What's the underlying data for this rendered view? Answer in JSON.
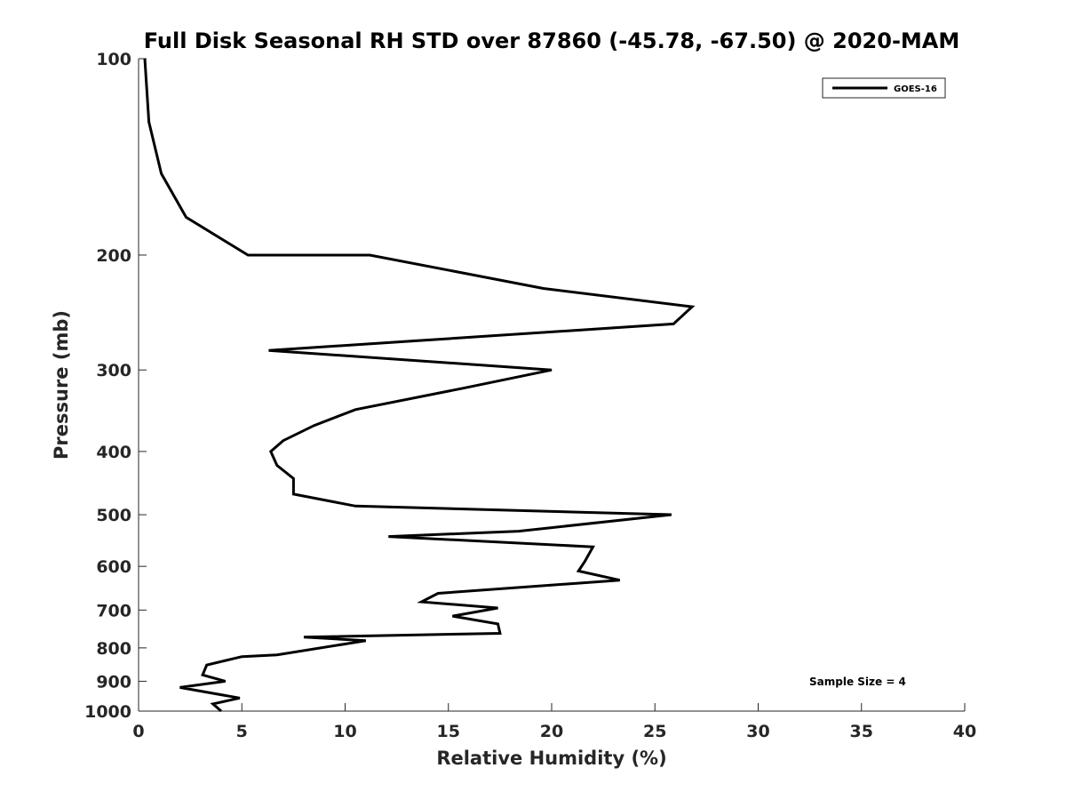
{
  "chart_data": {
    "type": "line",
    "title": "Full Disk Seasonal RH STD over 87860 (-45.78, -67.50) @ 2020-MAM",
    "xlabel": "Relative Humidity (%)",
    "ylabel": "Pressure (mb)",
    "xlim": [
      0,
      40
    ],
    "ylim": [
      100,
      1000
    ],
    "yscale": "log",
    "y_reversed": true,
    "grid": false,
    "legend_position": "top-right",
    "x_ticks": [
      0,
      5,
      10,
      15,
      20,
      25,
      30,
      35,
      40
    ],
    "x_tick_labels": [
      "0",
      "5",
      "10",
      "15",
      "20",
      "25",
      "30",
      "35",
      "40"
    ],
    "y_ticks": [
      100,
      200,
      300,
      400,
      500,
      600,
      700,
      800,
      900,
      1000
    ],
    "y_tick_labels": [
      "100",
      "200",
      "300",
      "400",
      "500",
      "600",
      "700",
      "800",
      "900",
      "1000"
    ],
    "annotation": "Sample Size = 4",
    "series": [
      {
        "name": "GOES-16",
        "color": "#000000",
        "points": [
          [
            0.3,
            100
          ],
          [
            0.5,
            125
          ],
          [
            1.1,
            150
          ],
          [
            2.3,
            175
          ],
          [
            5.3,
            200
          ],
          [
            11.2,
            200
          ],
          [
            19.6,
            225
          ],
          [
            26.8,
            240
          ],
          [
            25.9,
            255
          ],
          [
            6.3,
            280
          ],
          [
            20.0,
            300
          ],
          [
            15.7,
            320
          ],
          [
            10.5,
            345
          ],
          [
            8.5,
            365
          ],
          [
            7.0,
            385
          ],
          [
            6.4,
            400
          ],
          [
            6.7,
            420
          ],
          [
            7.5,
            440
          ],
          [
            7.5,
            465
          ],
          [
            10.5,
            485
          ],
          [
            25.8,
            500
          ],
          [
            18.4,
            530
          ],
          [
            12.1,
            540
          ],
          [
            22.0,
            560
          ],
          [
            21.6,
            590
          ],
          [
            21.3,
            610
          ],
          [
            23.3,
            630
          ],
          [
            14.5,
            660
          ],
          [
            13.7,
            680
          ],
          [
            17.4,
            695
          ],
          [
            15.2,
            715
          ],
          [
            17.4,
            735
          ],
          [
            17.5,
            760
          ],
          [
            8.0,
            770
          ],
          [
            11.0,
            780
          ],
          [
            6.7,
            820
          ],
          [
            5.0,
            825
          ],
          [
            3.3,
            850
          ],
          [
            3.1,
            880
          ],
          [
            4.2,
            900
          ],
          [
            2.0,
            920
          ],
          [
            4.9,
            955
          ],
          [
            3.6,
            975
          ],
          [
            4.0,
            1000
          ]
        ]
      }
    ]
  }
}
